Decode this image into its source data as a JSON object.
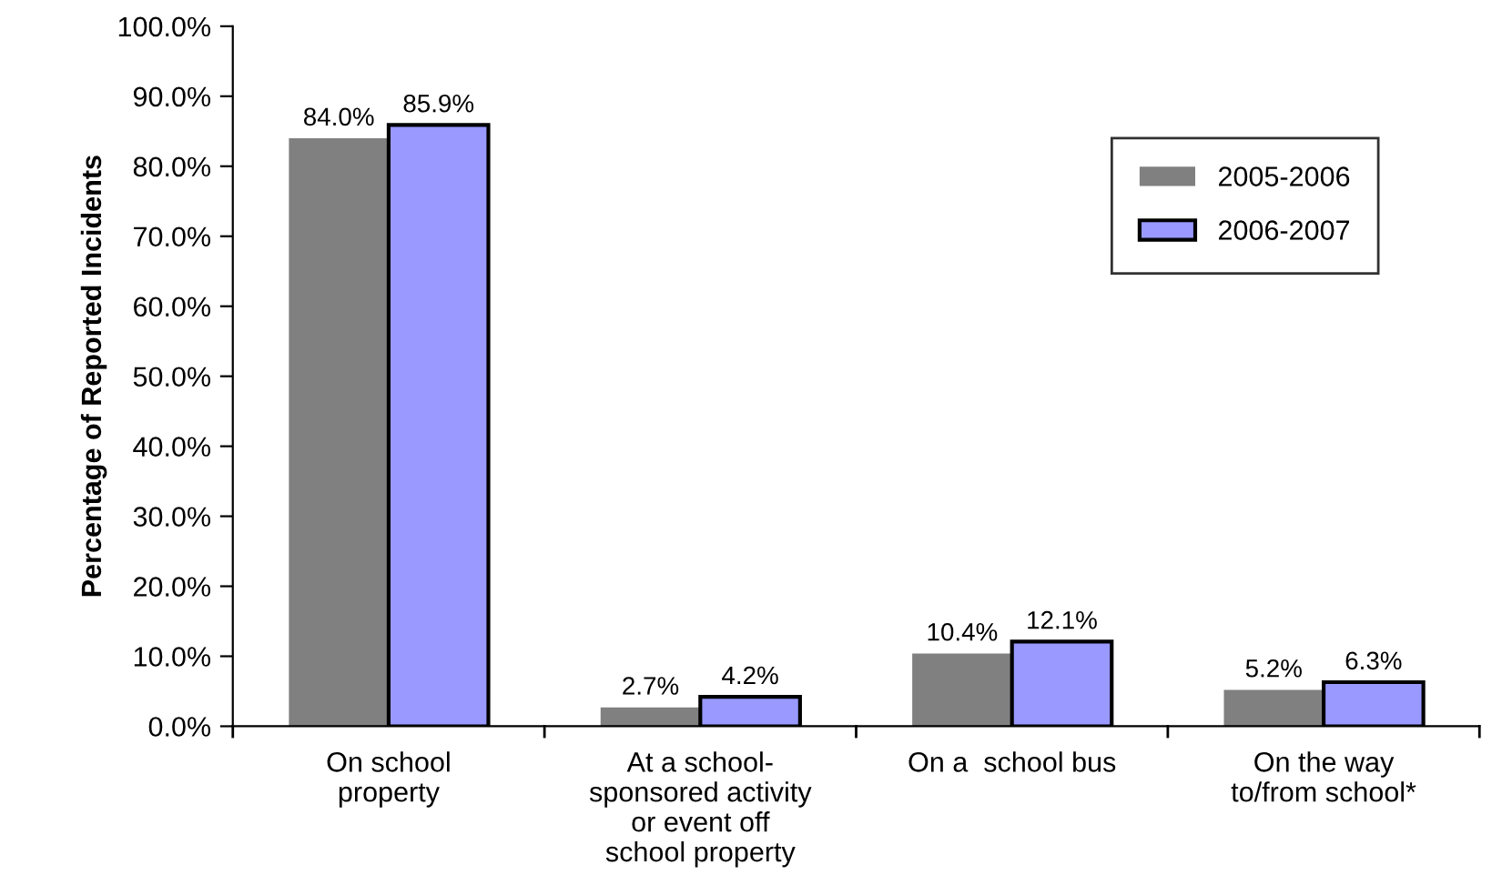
{
  "chart_data": {
    "type": "bar",
    "ylabel": "Percentage of Reported Incidents",
    "categories": [
      "On school\nproperty",
      "At a school-\nsponsored activity\nor event off\nschool property",
      "On a  school bus",
      "On the way\nto/from school*"
    ],
    "series": [
      {
        "name": "2005-2006",
        "color": "#808080",
        "values": [
          84.0,
          2.7,
          10.4,
          5.2
        ],
        "value_labels": [
          "84.0%",
          "2.7%",
          "10.4%",
          "5.2%"
        ]
      },
      {
        "name": "2006-2007",
        "color": "#9999ff",
        "values": [
          85.9,
          4.2,
          12.1,
          6.3
        ],
        "value_labels": [
          "85.9%",
          "4.2%",
          "12.1%",
          "6.3%"
        ]
      }
    ],
    "ylim": [
      0,
      100
    ],
    "yticks": [
      {
        "value": 0,
        "label": "0.0%"
      },
      {
        "value": 10,
        "label": "10.0%"
      },
      {
        "value": 20,
        "label": "20.0%"
      },
      {
        "value": 30,
        "label": "30.0%"
      },
      {
        "value": 40,
        "label": "40.0%"
      },
      {
        "value": 50,
        "label": "50.0%"
      },
      {
        "value": 60,
        "label": "60.0%"
      },
      {
        "value": 70,
        "label": "70.0%"
      },
      {
        "value": 80,
        "label": "80.0%"
      },
      {
        "value": 90,
        "label": "90.0%"
      },
      {
        "value": 100,
        "label": "100.0%"
      }
    ],
    "grid": false,
    "legend": "top right"
  }
}
